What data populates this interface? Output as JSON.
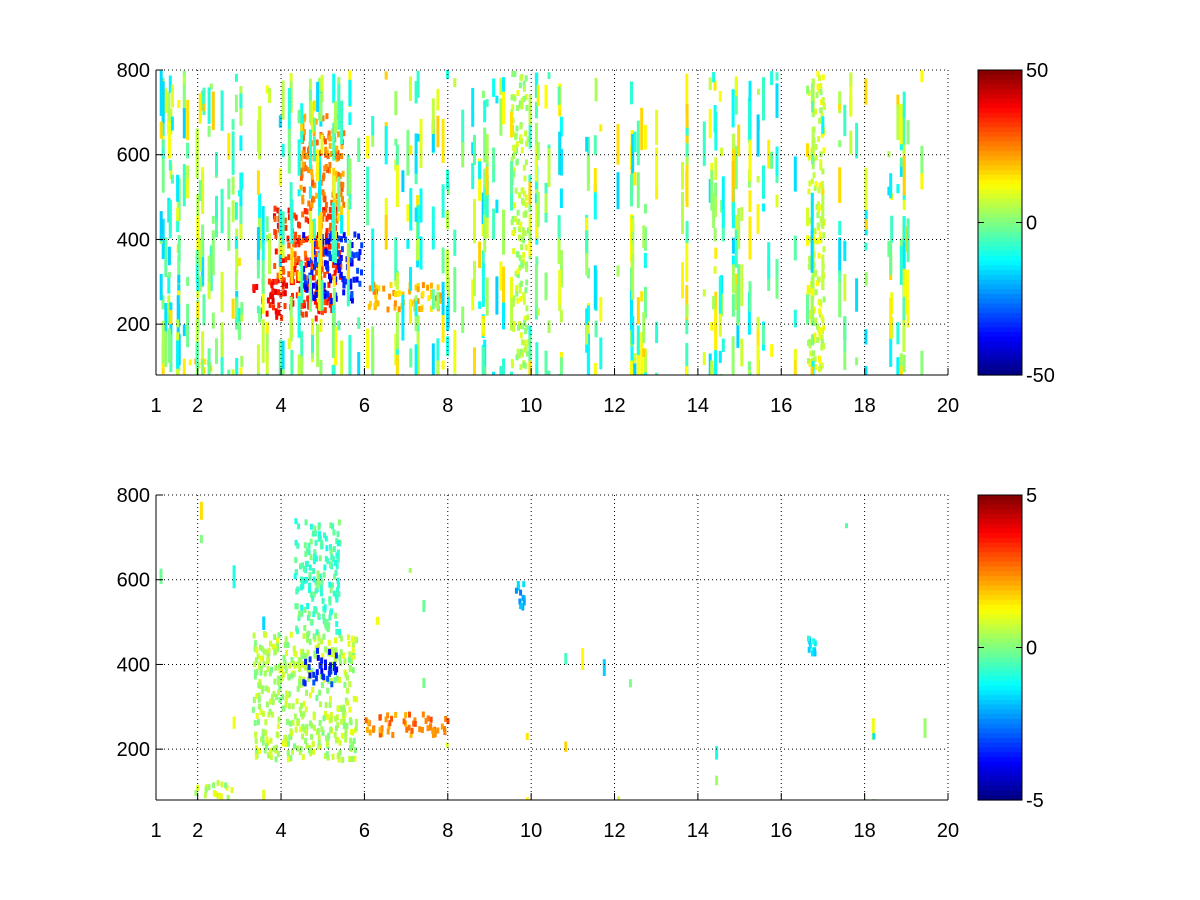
{
  "chart_data": [
    {
      "type": "heatmap",
      "title": "",
      "xlabel": "",
      "ylabel": "",
      "xlim": [
        1,
        20
      ],
      "ylim": [
        80,
        800
      ],
      "x_ticks": [
        "1",
        "2",
        "4",
        "6",
        "8",
        "10",
        "12",
        "14",
        "16",
        "18",
        "20"
      ],
      "x_tick_values": [
        1,
        2,
        4,
        6,
        8,
        10,
        12,
        14,
        16,
        18,
        20
      ],
      "y_ticks": [
        "200",
        "400",
        "600",
        "800"
      ],
      "y_tick_values": [
        200,
        400,
        600,
        800
      ],
      "grid": true,
      "colormap": "jet",
      "colorbar": {
        "range": [
          -50,
          50
        ],
        "tick_labels": [
          "50",
          "0",
          "-50"
        ],
        "tick_values": [
          50,
          0,
          -50
        ]
      },
      "features": [
        {
          "x": [
            3.3,
            5.2
          ],
          "y": [
            220,
            320
          ],
          "value": 35
        },
        {
          "x": [
            3.8,
            5.4
          ],
          "y": [
            300,
            480
          ],
          "value": 32
        },
        {
          "x": [
            4.4,
            5.5
          ],
          "y": [
            480,
            700
          ],
          "value": 25
        },
        {
          "x": [
            4.5,
            5.9
          ],
          "y": [
            260,
            420
          ],
          "value": -35
        },
        {
          "x": [
            6.0,
            7.8
          ],
          "y": [
            240,
            300
          ],
          "value": 20
        },
        {
          "x": [
            1.7,
            2.3
          ],
          "y": [
            90,
            120
          ],
          "value": 15
        },
        {
          "x": [
            9.5,
            9.9
          ],
          "y": [
            100,
            800
          ],
          "value": 5
        },
        {
          "x": [
            16.6,
            17.0
          ],
          "y": [
            90,
            800
          ],
          "value": 8
        }
      ]
    },
    {
      "type": "heatmap",
      "title": "",
      "xlabel": "",
      "ylabel": "",
      "xlim": [
        1,
        20
      ],
      "ylim": [
        80,
        800
      ],
      "x_ticks": [
        "1",
        "2",
        "4",
        "6",
        "8",
        "10",
        "12",
        "14",
        "16",
        "18",
        "20"
      ],
      "x_tick_values": [
        1,
        2,
        4,
        6,
        8,
        10,
        12,
        14,
        16,
        18,
        20
      ],
      "y_ticks": [
        "200",
        "400",
        "600",
        "800"
      ],
      "y_tick_values": [
        200,
        400,
        600,
        800
      ],
      "grid": true,
      "colormap": "jet",
      "colorbar": {
        "range": [
          -5,
          5
        ],
        "tick_labels": [
          "5",
          "0",
          "-5"
        ],
        "tick_values": [
          5,
          0,
          -5
        ]
      },
      "features": [
        {
          "x": [
            3.3,
            5.8
          ],
          "y": [
            180,
            480
          ],
          "value": 0.5
        },
        {
          "x": [
            4.3,
            5.4
          ],
          "y": [
            480,
            750
          ],
          "value": -0.5
        },
        {
          "x": [
            4.5,
            5.3
          ],
          "y": [
            360,
            440
          ],
          "value": -3.5
        },
        {
          "x": [
            6.0,
            8.0
          ],
          "y": [
            240,
            290
          ],
          "value": 2.5
        },
        {
          "x": [
            1.9,
            2.8
          ],
          "y": [
            90,
            130
          ],
          "value": 0.5
        },
        {
          "x": [
            9.6,
            9.8
          ],
          "y": [
            540,
            600
          ],
          "value": -2
        },
        {
          "x": [
            16.6,
            16.8
          ],
          "y": [
            430,
            470
          ],
          "value": -1.5
        }
      ]
    }
  ]
}
